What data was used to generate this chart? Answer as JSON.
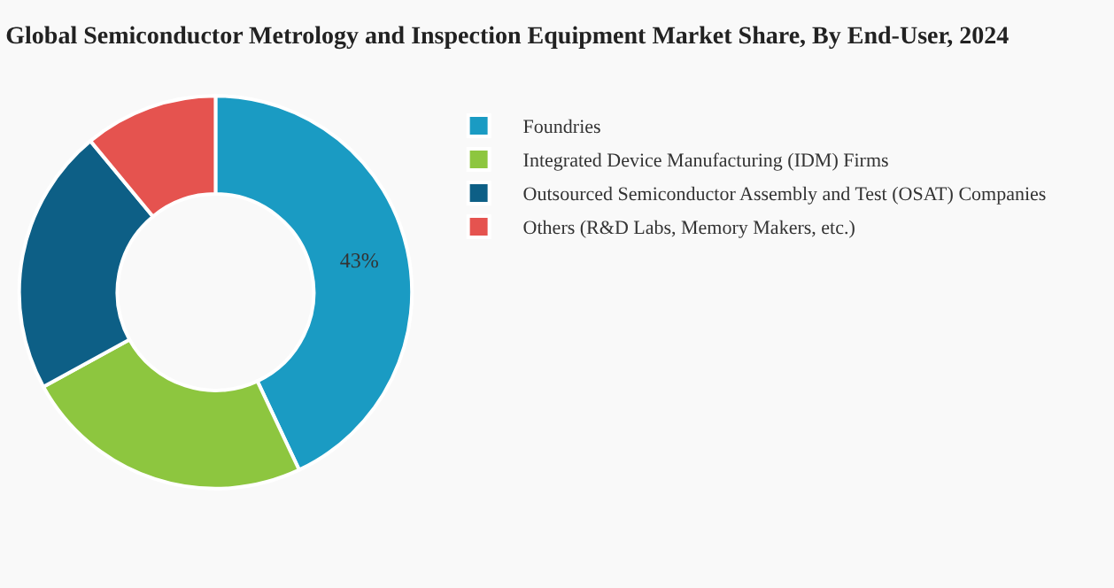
{
  "chart_data": {
    "type": "donut",
    "title": "Global Semiconductor Metrology and Inspection Equipment Market Share, By End-User, 2024",
    "categories": [
      "Foundries",
      "Integrated Device Manufacturing (IDM) Firms",
      "Outsourced Semiconductor Assembly and Test (OSAT) Companies",
      "Others (R&D Labs, Memory Makers, etc.)"
    ],
    "values": [
      43,
      24,
      22,
      11
    ],
    "colors": [
      "#1a9bc3",
      "#8dc63f",
      "#0d5f86",
      "#e5534f"
    ],
    "value_labels": [
      "43%",
      null,
      null,
      null
    ],
    "legend": "right"
  }
}
